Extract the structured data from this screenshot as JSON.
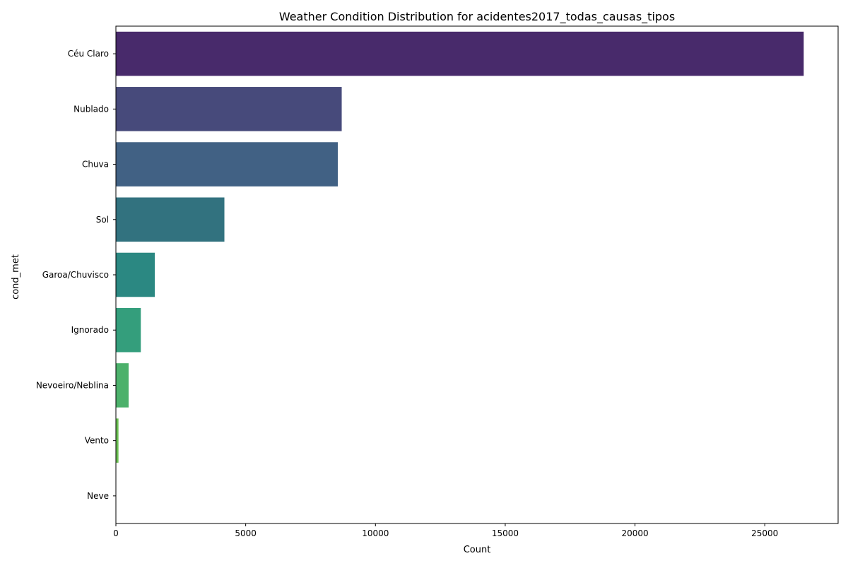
{
  "chart_data": {
    "type": "bar",
    "orientation": "horizontal",
    "title": "Weather Condition Distribution for acidentes2017_todas_causas_tipos",
    "xlabel": "Count",
    "ylabel": "cond_met",
    "categories": [
      "Céu Claro",
      "Nublado",
      "Chuva",
      "Sol",
      "Garoa/Chuvisco",
      "Ignorado",
      "Nevoeiro/Neblina",
      "Vento",
      "Neve"
    ],
    "values": [
      26500,
      8700,
      8550,
      4180,
      1500,
      960,
      490,
      100,
      3
    ],
    "xlim": [
      0,
      27825
    ],
    "xticks": [
      0,
      5000,
      10000,
      15000,
      20000,
      25000
    ],
    "xtick_labels": [
      "0",
      "5000",
      "10000",
      "15000",
      "20000",
      "25000"
    ],
    "grid": false,
    "legend": "none",
    "colors": [
      "#482A6B",
      "#474A7B",
      "#416184",
      "#32727F",
      "#2B8882",
      "#349E7C",
      "#4CB16B",
      "#6CC053",
      "#97CF3E"
    ]
  }
}
